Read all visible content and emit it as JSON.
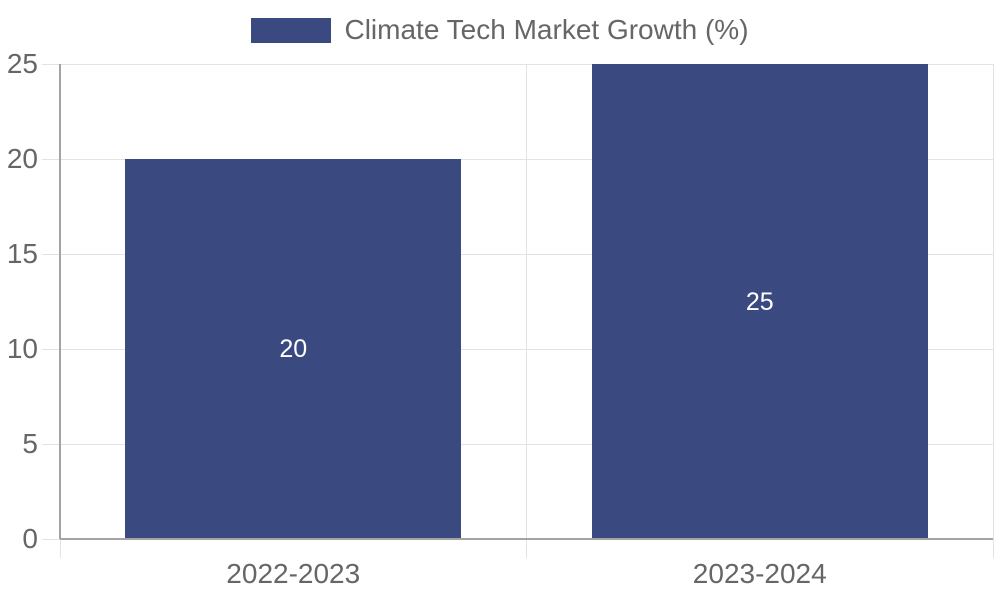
{
  "chart_data": {
    "type": "bar",
    "title": "Climate Tech Market Growth (%)",
    "categories": [
      "2022-2023",
      "2023-2024"
    ],
    "values": [
      20,
      25
    ],
    "value_labels": [
      "20",
      "25"
    ],
    "yticks": [
      0,
      5,
      10,
      15,
      20,
      25
    ],
    "ytick_labels": [
      "0",
      "5",
      "10",
      "15",
      "20",
      "25"
    ],
    "ylim": [
      0,
      25
    ],
    "xlabel": "",
    "ylabel": "",
    "grid": true,
    "legend_position": "top",
    "colors": {
      "bar": "#3a4a80",
      "tick_text": "#666666",
      "legend_text": "#666666",
      "gridline": "#e3e3e3",
      "axis_line": "#a3a3a3",
      "data_label": "#ffffff",
      "background": "#ffffff"
    }
  }
}
